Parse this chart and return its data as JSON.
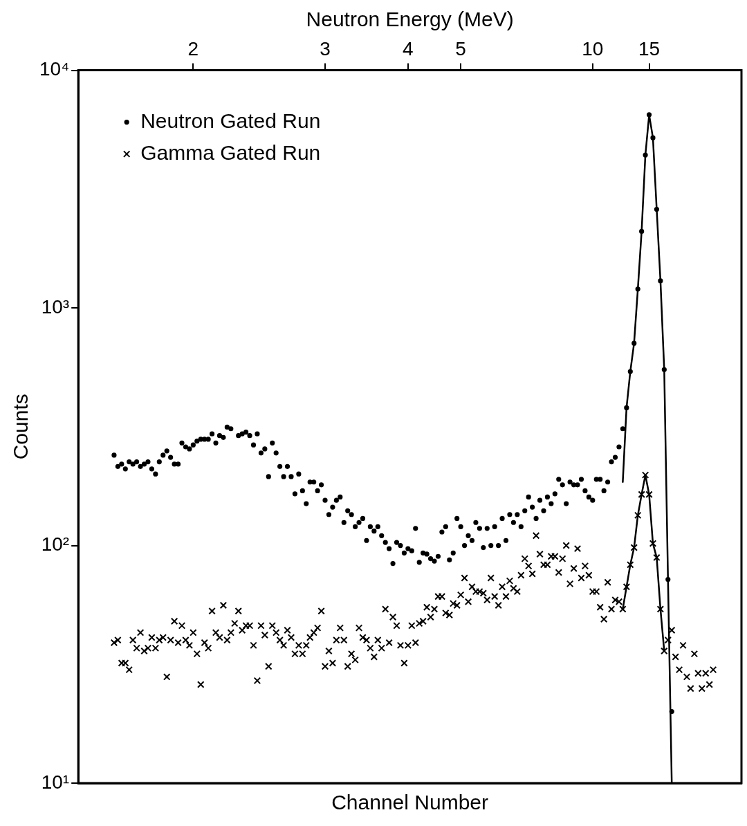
{
  "chart_data": {
    "type": "scatter",
    "x2label": "Neutron Energy (MeV)",
    "xlabel": "Channel Number",
    "ylabel": "Counts",
    "log": "y",
    "grid": false,
    "legend": "top left",
    "categories": [
      null,
      null,
      null,
      null,
      null,
      null,
      null,
      null,
      null,
      null,
      null,
      null,
      null,
      null,
      null,
      null,
      null,
      null,
      null,
      null,
      null,
      null,
      null,
      null,
      null,
      null,
      null,
      null,
      null,
      null,
      "2",
      null,
      null,
      null,
      null,
      null,
      null,
      null,
      null,
      null,
      null,
      null,
      null,
      null,
      null,
      null,
      null,
      null,
      null,
      null,
      null,
      null,
      null,
      null,
      null,
      null,
      null,
      null,
      null,
      null,
      null,
      null,
      null,
      null,
      null,
      "3",
      null,
      null,
      null,
      null,
      null,
      null,
      null,
      null,
      null,
      null,
      null,
      null,
      null,
      null,
      null,
      null,
      null,
      null,
      null,
      null,
      null,
      "4",
      null,
      null,
      null,
      null,
      null,
      null,
      null,
      null,
      null,
      null,
      null,
      null,
      null,
      "5",
      null,
      null,
      null,
      null,
      null,
      null,
      null,
      null,
      null,
      null,
      null,
      null,
      null,
      null,
      null,
      null,
      null,
      null,
      null,
      null,
      null,
      null,
      null,
      null,
      null,
      null,
      null,
      null,
      null,
      null,
      null,
      null,
      null,
      null,
      "10",
      null,
      null,
      null,
      null,
      null,
      null,
      null,
      null,
      null,
      null,
      null,
      null,
      null,
      null,
      "15",
      null,
      null,
      null,
      null,
      null,
      null,
      null,
      null,
      null,
      null,
      null,
      null,
      null,
      null,
      null,
      null,
      null,
      null,
      null,
      null,
      null,
      null,
      null,
      null
    ],
    "ylim": [
      10,
      10000
    ],
    "yticks": [
      {
        "value": 10,
        "label": "10¹"
      },
      {
        "value": 100,
        "label": "10²"
      },
      {
        "value": 1000,
        "label": "10³"
      },
      {
        "value": 10000,
        "label": "10⁴"
      }
    ],
    "series": [
      {
        "name": "Neutron Gated Run",
        "color": "#000000",
        "marker": "circle",
        "values": [
          null,
          null,
          null,
          null,
          null,
          null,
          null,
          null,
          null,
          240,
          215,
          220,
          210,
          225,
          220,
          225,
          215,
          220,
          225,
          210,
          200,
          225,
          240,
          250,
          235,
          220,
          220,
          270,
          260,
          255,
          265,
          275,
          280,
          280,
          280,
          295,
          270,
          290,
          285,
          315,
          310,
          null,
          290,
          295,
          300,
          290,
          265,
          295,
          245,
          255,
          195,
          270,
          245,
          215,
          195,
          215,
          195,
          165,
          200,
          170,
          150,
          185,
          185,
          170,
          180,
          155,
          135,
          145,
          155,
          160,
          125,
          140,
          135,
          120,
          125,
          130,
          105,
          120,
          115,
          120,
          110,
          103,
          97,
          84,
          103,
          100,
          93,
          97,
          95,
          118,
          85,
          93,
          92,
          88,
          86,
          90,
          114,
          120,
          87,
          93,
          130,
          120,
          100,
          110,
          105,
          125,
          118,
          98,
          118,
          100,
          120,
          100,
          130,
          105,
          135,
          125,
          135,
          120,
          140,
          160,
          145,
          130,
          155,
          140,
          160,
          150,
          165,
          190,
          180,
          150,
          185,
          180,
          180,
          190,
          170,
          160,
          155,
          190,
          190,
          170,
          185,
          225,
          235,
          260,
          310,
          380,
          540,
          710,
          1200,
          2100,
          4400,
          6500,
          5200,
          2600,
          1300,
          550,
          72,
          20,
          null,
          null,
          null,
          null,
          null,
          null,
          null,
          null,
          null,
          null,
          null,
          null,
          null,
          null,
          null,
          null,
          null,
          null
        ]
      },
      {
        "name": "Gamma Gated Run",
        "color": "#000000",
        "marker": "cross",
        "values": [
          null,
          null,
          null,
          null,
          null,
          null,
          null,
          null,
          null,
          39,
          40,
          32,
          32,
          30,
          40,
          37,
          43,
          36,
          37,
          41,
          37,
          40,
          41,
          28,
          40,
          48,
          39,
          46,
          40,
          38,
          43,
          35,
          26,
          39,
          37,
          53,
          43,
          41,
          56,
          40,
          43,
          47,
          53,
          44,
          46,
          46,
          38,
          27,
          46,
          42,
          31,
          46,
          43,
          40,
          38,
          44,
          41,
          35,
          38,
          35,
          38,
          41,
          43,
          45,
          53,
          31,
          36,
          32,
          40,
          45,
          40,
          31,
          35,
          33,
          45,
          41,
          40,
          37,
          34,
          40,
          37,
          54,
          39,
          50,
          46,
          38,
          32,
          38,
          46,
          39,
          47,
          48,
          55,
          50,
          54,
          61,
          61,
          52,
          51,
          57,
          56,
          62,
          73,
          58,
          67,
          64,
          64,
          63,
          59,
          73,
          61,
          56,
          67,
          61,
          71,
          66,
          64,
          75,
          88,
          82,
          76,
          110,
          92,
          83,
          83,
          90,
          90,
          77,
          88,
          100,
          69,
          80,
          97,
          73,
          82,
          75,
          64,
          64,
          55,
          49,
          70,
          54,
          59,
          58,
          54,
          67,
          83,
          98,
          134,
          164,
          198,
          164,
          102,
          89,
          54,
          36,
          40,
          44,
          34,
          30,
          38,
          28,
          25,
          35,
          29,
          25,
          29,
          26,
          30,
          null,
          null,
          null,
          null,
          null,
          null,
          null
        ]
      },
      {
        "type": "line",
        "color": "#000000",
        "marker": "none",
        "values": [
          null,
          null,
          null,
          null,
          null,
          null,
          null,
          null,
          null,
          null,
          null,
          null,
          null,
          null,
          null,
          null,
          null,
          null,
          null,
          null,
          null,
          null,
          null,
          null,
          null,
          null,
          null,
          null,
          null,
          null,
          null,
          null,
          null,
          null,
          null,
          null,
          null,
          null,
          null,
          null,
          null,
          null,
          null,
          null,
          null,
          null,
          null,
          null,
          null,
          null,
          null,
          null,
          null,
          null,
          null,
          null,
          null,
          null,
          null,
          null,
          null,
          null,
          null,
          null,
          null,
          null,
          null,
          null,
          null,
          null,
          null,
          null,
          null,
          null,
          null,
          null,
          null,
          null,
          null,
          null,
          null,
          null,
          null,
          null,
          null,
          null,
          null,
          null,
          null,
          null,
          null,
          null,
          null,
          null,
          null,
          null,
          null,
          null,
          null,
          null,
          null,
          null,
          null,
          null,
          null,
          null,
          null,
          null,
          null,
          null,
          null,
          null,
          null,
          null,
          null,
          null,
          null,
          null,
          null,
          null,
          null,
          null,
          null,
          null,
          null,
          null,
          null,
          null,
          null,
          null,
          null,
          null,
          null,
          null,
          null,
          null,
          null,
          null,
          null,
          null,
          null,
          null,
          null,
          null,
          185,
          380,
          540,
          710,
          1200,
          2100,
          4400,
          6500,
          5200,
          2600,
          1300,
          550,
          72,
          10,
          null,
          null,
          null,
          null,
          null,
          null,
          null,
          null,
          null,
          null,
          null,
          null,
          null,
          null,
          null,
          null,
          null,
          null
        ]
      },
      {
        "type": "line",
        "color": "#000000",
        "marker": "none",
        "values": [
          null,
          null,
          null,
          null,
          null,
          null,
          null,
          null,
          null,
          null,
          null,
          null,
          null,
          null,
          null,
          null,
          null,
          null,
          null,
          null,
          null,
          null,
          null,
          null,
          null,
          null,
          null,
          null,
          null,
          null,
          null,
          null,
          null,
          null,
          null,
          null,
          null,
          null,
          null,
          null,
          null,
          null,
          null,
          null,
          null,
          null,
          null,
          null,
          null,
          null,
          null,
          null,
          null,
          null,
          null,
          null,
          null,
          null,
          null,
          null,
          null,
          null,
          null,
          null,
          null,
          null,
          null,
          null,
          null,
          null,
          null,
          null,
          null,
          null,
          null,
          null,
          null,
          null,
          null,
          null,
          null,
          null,
          null,
          null,
          null,
          null,
          null,
          null,
          null,
          null,
          null,
          null,
          null,
          null,
          null,
          null,
          null,
          null,
          null,
          null,
          null,
          null,
          null,
          null,
          null,
          null,
          null,
          null,
          null,
          null,
          null,
          null,
          null,
          null,
          null,
          null,
          null,
          null,
          null,
          null,
          null,
          null,
          null,
          null,
          null,
          null,
          null,
          null,
          null,
          null,
          null,
          null,
          null,
          null,
          null,
          null,
          null,
          null,
          null,
          null,
          null,
          null,
          null,
          null,
          54,
          67,
          83,
          98,
          134,
          164,
          198,
          164,
          102,
          89,
          54,
          36,
          null,
          null,
          null,
          null,
          null,
          null,
          null,
          null,
          null,
          null,
          null,
          null,
          null,
          null,
          null,
          null,
          null,
          null,
          null,
          null
        ]
      }
    ]
  }
}
